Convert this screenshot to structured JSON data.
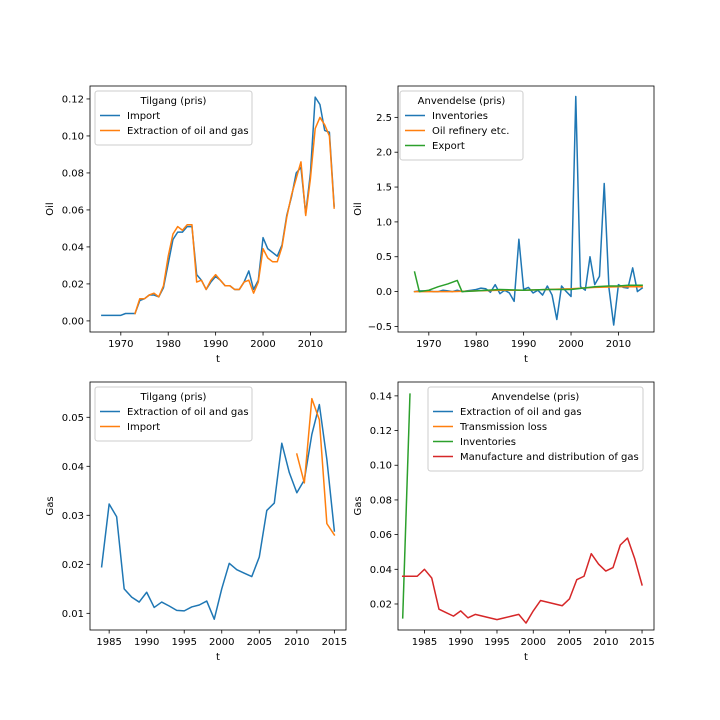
{
  "colors": {
    "blue": "#1f77b4",
    "orange": "#ff7f0e",
    "green": "#2ca02c",
    "red": "#d62728"
  },
  "chart_data": [
    {
      "type": "line",
      "xlabel": "t",
      "ylabel": "Oil",
      "xlim": [
        1963.5,
        2017.5
      ],
      "ylim": [
        -0.006,
        0.127
      ],
      "xticks": [
        1970,
        1980,
        1990,
        2000,
        2010
      ],
      "yticks": [
        0.0,
        0.02,
        0.04,
        0.06,
        0.08,
        0.1,
        0.12
      ],
      "ytick_labels": [
        "0.00",
        "0.02",
        "0.04",
        "0.06",
        "0.08",
        "0.10",
        "0.12"
      ],
      "legend_title": "Tilgang (pris)",
      "legend_position": "top-left",
      "series": [
        {
          "name": "Import",
          "color": "#1f77b4",
          "x": [
            1966,
            1967,
            1968,
            1969,
            1970,
            1971,
            1972,
            1973,
            1974,
            1975,
            1976,
            1977,
            1978,
            1979,
            1980,
            1981,
            1982,
            1983,
            1984,
            1985,
            1986,
            1987,
            1988,
            1989,
            1990,
            1991,
            1992,
            1993,
            1994,
            1995,
            1996,
            1997,
            1998,
            1999,
            2000,
            2001,
            2002,
            2003,
            2004,
            2005,
            2006,
            2007,
            2008,
            2009,
            2010,
            2011,
            2012,
            2013,
            2014,
            2015
          ],
          "y": [
            0.003,
            0.003,
            0.003,
            0.003,
            0.003,
            0.004,
            0.004,
            0.004,
            0.011,
            0.012,
            0.014,
            0.014,
            0.013,
            0.018,
            0.031,
            0.044,
            0.048,
            0.048,
            0.051,
            0.051,
            0.025,
            0.022,
            0.017,
            0.021,
            0.024,
            0.022,
            0.019,
            0.019,
            0.017,
            0.017,
            0.021,
            0.027,
            0.017,
            0.022,
            0.045,
            0.039,
            0.037,
            0.035,
            0.041,
            0.057,
            0.067,
            0.08,
            0.083,
            0.058,
            0.08,
            0.121,
            0.117,
            0.103,
            0.102,
            0.062
          ]
        },
        {
          "name": "Extraction of oil and gas",
          "color": "#ff7f0e",
          "x": [
            1973,
            1974,
            1975,
            1976,
            1977,
            1978,
            1979,
            1980,
            1981,
            1982,
            1983,
            1984,
            1985,
            1986,
            1987,
            1988,
            1989,
            1990,
            1991,
            1992,
            1993,
            1994,
            1995,
            1996,
            1997,
            1998,
            1999,
            2000,
            2001,
            2002,
            2003,
            2004,
            2005,
            2006,
            2007,
            2008,
            2009,
            2010,
            2011,
            2012,
            2013,
            2014,
            2015
          ],
          "y": [
            0.004,
            0.012,
            0.012,
            0.014,
            0.015,
            0.013,
            0.019,
            0.035,
            0.047,
            0.051,
            0.049,
            0.052,
            0.052,
            0.021,
            0.022,
            0.017,
            0.022,
            0.025,
            0.022,
            0.019,
            0.019,
            0.017,
            0.017,
            0.021,
            0.022,
            0.015,
            0.021,
            0.039,
            0.034,
            0.032,
            0.032,
            0.04,
            0.056,
            0.068,
            0.077,
            0.086,
            0.057,
            0.077,
            0.104,
            0.11,
            0.106,
            0.1,
            0.061
          ]
        }
      ]
    },
    {
      "type": "line",
      "xlabel": "t",
      "ylabel": "Oil",
      "xlim": [
        1963.5,
        2017.5
      ],
      "ylim": [
        -0.58,
        2.95
      ],
      "xticks": [
        1970,
        1980,
        1990,
        2000,
        2010
      ],
      "yticks": [
        -0.5,
        0.0,
        0.5,
        1.0,
        1.5,
        2.0,
        2.5
      ],
      "ytick_labels": [
        "−0.5",
        "0.0",
        "0.5",
        "1.0",
        "1.5",
        "2.0",
        "2.5"
      ],
      "legend_title": "Anvendelse (pris)",
      "legend_position": "top-left",
      "series": [
        {
          "name": "Inventories",
          "color": "#1f77b4",
          "x": [
            1967,
            1968,
            1969,
            1970,
            1971,
            1972,
            1973,
            1974,
            1975,
            1976,
            1977,
            1978,
            1979,
            1980,
            1981,
            1982,
            1983,
            1984,
            1985,
            1986,
            1987,
            1988,
            1989,
            1990,
            1991,
            1992,
            1993,
            1994,
            1995,
            1996,
            1997,
            1998,
            1999,
            2000,
            2001,
            2002,
            2003,
            2004,
            2005,
            2006,
            2007,
            2008,
            2009,
            2010,
            2011,
            2012,
            2013,
            2014,
            2015
          ],
          "y": [
            0.0,
            0.01,
            0.01,
            0.01,
            0.0,
            0.0,
            0.02,
            0.01,
            0.0,
            0.02,
            0.0,
            0.01,
            0.02,
            0.03,
            0.05,
            0.04,
            -0.01,
            0.1,
            -0.03,
            0.02,
            -0.02,
            -0.14,
            0.75,
            0.03,
            0.06,
            -0.02,
            0.02,
            -0.05,
            0.08,
            -0.05,
            -0.4,
            0.08,
            0.0,
            -0.07,
            2.8,
            0.07,
            0.02,
            0.5,
            0.1,
            0.22,
            1.55,
            0.05,
            -0.48,
            0.1,
            0.06,
            0.05,
            0.34,
            0.0,
            0.05
          ]
        },
        {
          "name": "Oil refinery etc.",
          "color": "#ff7f0e",
          "x": [
            1967,
            1970,
            1975,
            1980,
            1985,
            1990,
            1995,
            2000,
            2005,
            2010,
            2015
          ],
          "y": [
            0.0,
            0.0,
            0.0,
            0.01,
            0.02,
            0.02,
            0.03,
            0.04,
            0.06,
            0.07,
            0.07
          ]
        },
        {
          "name": "Export",
          "color": "#2ca02c",
          "x": [
            1967,
            1968,
            1970,
            1972,
            1974,
            1976,
            1977,
            1980,
            1985,
            1990,
            1995,
            2000,
            2005,
            2008,
            2010,
            2012,
            2015
          ],
          "y": [
            0.28,
            0.0,
            0.02,
            0.07,
            0.11,
            0.16,
            0.0,
            0.01,
            0.03,
            0.02,
            0.03,
            0.03,
            0.07,
            0.08,
            0.08,
            0.09,
            0.09
          ]
        }
      ]
    },
    {
      "type": "line",
      "xlabel": "t",
      "ylabel": "Gas",
      "xlim": [
        1982.45,
        2016.55
      ],
      "ylim": [
        0.0066,
        0.0572
      ],
      "xticks": [
        1985,
        1990,
        1995,
        2000,
        2005,
        2010,
        2015
      ],
      "yticks": [
        0.01,
        0.02,
        0.03,
        0.04,
        0.05
      ],
      "ytick_labels": [
        "0.01",
        "0.02",
        "0.03",
        "0.04",
        "0.05"
      ],
      "legend_title": "Tilgang (pris)",
      "legend_position": "top-left",
      "series": [
        {
          "name": "Extraction of oil and gas",
          "color": "#1f77b4",
          "x": [
            1984,
            1985,
            1986,
            1987,
            1988,
            1989,
            1990,
            1991,
            1992,
            1993,
            1994,
            1995,
            1996,
            1997,
            1998,
            1999,
            2000,
            2001,
            2002,
            2003,
            2004,
            2005,
            2006,
            2007,
            2008,
            2009,
            2010,
            2011,
            2012,
            2013,
            2014,
            2015
          ],
          "y": [
            0.0195,
            0.0323,
            0.0297,
            0.015,
            0.0133,
            0.0123,
            0.0143,
            0.0112,
            0.0123,
            0.0115,
            0.0106,
            0.0105,
            0.0113,
            0.0117,
            0.0125,
            0.0088,
            0.015,
            0.0202,
            0.0189,
            0.0182,
            0.0175,
            0.0215,
            0.031,
            0.0325,
            0.0447,
            0.0387,
            0.0346,
            0.0372,
            0.0465,
            0.0526,
            0.0414,
            0.0268
          ]
        },
        {
          "name": "Import",
          "color": "#ff7f0e",
          "x": [
            2010,
            2011,
            2012,
            2013,
            2014,
            2015
          ],
          "y": [
            0.0425,
            0.0366,
            0.0538,
            0.0495,
            0.0283,
            0.026
          ]
        }
      ]
    },
    {
      "type": "line",
      "xlabel": "t",
      "ylabel": "Gas",
      "xlim": [
        1981.35,
        2016.65
      ],
      "ylim": [
        0.005,
        0.148
      ],
      "xticks": [
        1985,
        1990,
        1995,
        2000,
        2005,
        2010,
        2015
      ],
      "yticks": [
        0.02,
        0.04,
        0.06,
        0.08,
        0.1,
        0.12,
        0.14
      ],
      "ytick_labels": [
        "0.02",
        "0.04",
        "0.06",
        "0.08",
        "0.10",
        "0.12",
        "0.14"
      ],
      "legend_title": "Anvendelse (pris)",
      "legend_position": "top-right",
      "series": [
        {
          "name": "Extraction of oil and gas",
          "color": "#1f77b4",
          "x": [],
          "y": []
        },
        {
          "name": "Transmission loss",
          "color": "#ff7f0e",
          "x": [],
          "y": []
        },
        {
          "name": "Inventories",
          "color": "#2ca02c",
          "x": [
            1982,
            1983
          ],
          "y": [
            0.012,
            0.141
          ]
        },
        {
          "name": "Manufacture and distribution of gas",
          "color": "#d62728",
          "x": [
            1982,
            1983,
            1984,
            1985,
            1986,
            1987,
            1988,
            1989,
            1990,
            1991,
            1992,
            1993,
            1994,
            1995,
            1996,
            1997,
            1998,
            1999,
            2000,
            2001,
            2002,
            2003,
            2004,
            2005,
            2006,
            2007,
            2008,
            2009,
            2010,
            2011,
            2012,
            2013,
            2014,
            2015
          ],
          "y": [
            0.036,
            0.036,
            0.036,
            0.04,
            0.035,
            0.017,
            0.015,
            0.013,
            0.016,
            0.012,
            0.014,
            0.013,
            0.012,
            0.011,
            0.012,
            0.013,
            0.014,
            0.009,
            0.016,
            0.022,
            0.021,
            0.02,
            0.019,
            0.023,
            0.034,
            0.036,
            0.049,
            0.043,
            0.039,
            0.041,
            0.054,
            0.058,
            0.046,
            0.031
          ]
        }
      ]
    }
  ]
}
